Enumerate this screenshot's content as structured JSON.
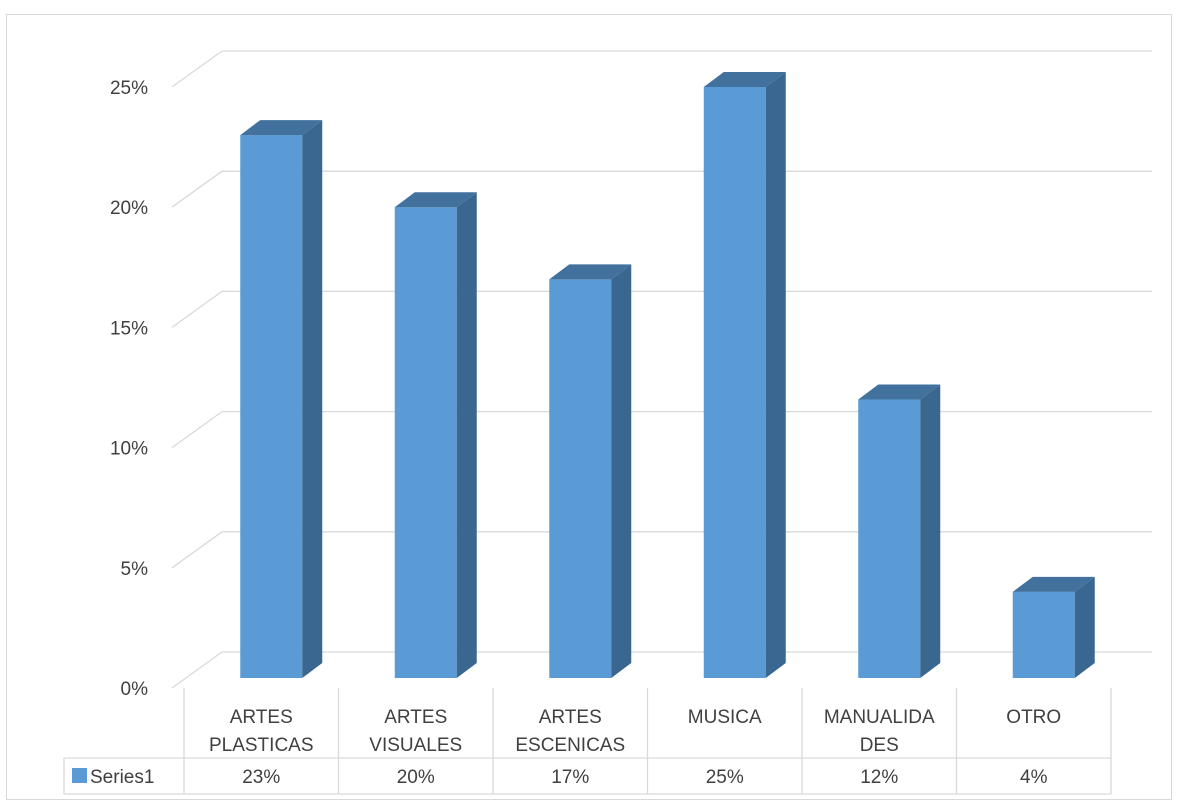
{
  "chart_data": {
    "type": "bar",
    "categories": [
      [
        "ARTES",
        "PLASTICAS"
      ],
      [
        "ARTES",
        "VISUALES"
      ],
      [
        "ARTES",
        "ESCENICAS"
      ],
      [
        "MUSICA"
      ],
      [
        "MANUALIDA",
        "DES"
      ],
      [
        "OTRO"
      ]
    ],
    "series": [
      {
        "name": "Series1",
        "values": [
          0.23,
          0.2,
          0.17,
          0.25,
          0.12,
          0.04
        ]
      }
    ],
    "value_labels": [
      "23%",
      "20%",
      "17%",
      "25%",
      "12%",
      "4%"
    ],
    "y_ticks": [
      "0%",
      "5%",
      "10%",
      "15%",
      "20%",
      "25%"
    ],
    "ylim": [
      0,
      0.25
    ],
    "grid": true,
    "legend": "data-table-bottom",
    "colors": {
      "front": "#5b9bd5",
      "top": "#41719c",
      "side": "#3a6790",
      "grid": "#d9d9d9",
      "text": "#404040"
    }
  }
}
